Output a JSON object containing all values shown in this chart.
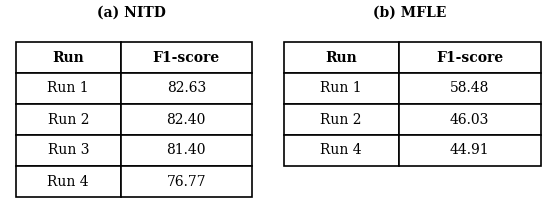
{
  "title_a": "(a) NITD",
  "title_b": "(b) MFLE",
  "table_a_headers": [
    "Run",
    "F1-score"
  ],
  "table_a_rows": [
    [
      "Run 1",
      "82.63"
    ],
    [
      "Run 2",
      "82.40"
    ],
    [
      "Run 3",
      "81.40"
    ],
    [
      "Run 4",
      "76.77"
    ]
  ],
  "table_b_headers": [
    "Run",
    "F1-score"
  ],
  "table_b_rows": [
    [
      "Run 1",
      "58.48"
    ],
    [
      "Run 2",
      "46.03"
    ],
    [
      "Run 4",
      "44.91"
    ]
  ],
  "background_color": "#ffffff",
  "title_fontsize": 10,
  "cell_fontsize": 10,
  "fig_width": 5.46,
  "fig_height": 2.0,
  "fig_dpi": 100
}
